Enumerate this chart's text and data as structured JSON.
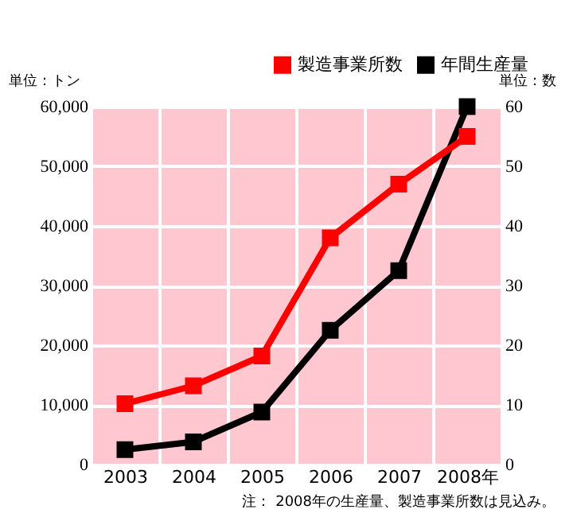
{
  "chart_data": {
    "type": "line",
    "categories": [
      "2003",
      "2004",
      "2005",
      "2006",
      "2007",
      "2008年"
    ],
    "series": [
      {
        "name": "製造事業所数",
        "color": "#ff0000",
        "axis": "y2",
        "values": [
          10.2,
          13.2,
          18.2,
          38,
          47,
          55
        ]
      },
      {
        "name": "年間生産量",
        "color": "#000000",
        "values": [
          2500,
          3800,
          8800,
          22500,
          32500,
          60000
        ]
      }
    ],
    "ylabel": "単位：トン",
    "y2label": "単位：数",
    "ylim": [
      0,
      60000
    ],
    "yticks": [
      {
        "value": 0,
        "label": "0"
      },
      {
        "value": 10000,
        "label": "10,000"
      },
      {
        "value": 20000,
        "label": "20,000"
      },
      {
        "value": 30000,
        "label": "30,000"
      },
      {
        "value": 40000,
        "label": "40,000"
      },
      {
        "value": 50000,
        "label": "50,000"
      },
      {
        "value": 60000,
        "label": "60,000"
      }
    ],
    "y2lim": [
      0,
      60
    ],
    "y2ticks": [
      0,
      10,
      20,
      30,
      40,
      50,
      60
    ],
    "annotations": [
      "注： 2008年の生産量、製造事業所数は見込み。"
    ],
    "grid": true,
    "legend": "top right",
    "marker": "square",
    "line_style": "solid"
  }
}
